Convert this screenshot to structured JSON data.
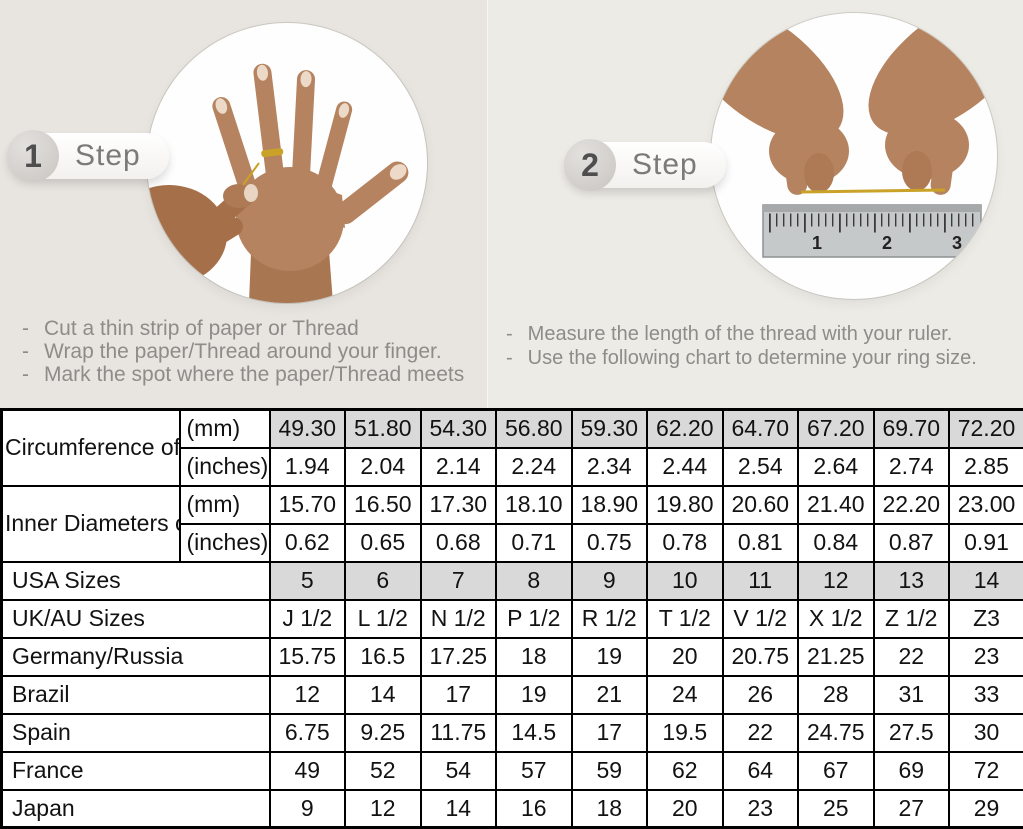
{
  "steps": [
    {
      "number": "1",
      "label": "Step",
      "instructions": [
        "Cut a thin strip of paper or Thread",
        "Wrap the paper/Thread around your finger.",
        "Mark the spot where the paper/Thread meets"
      ]
    },
    {
      "number": "2",
      "label": "Step",
      "instructions": [
        "Measure the length of the thread with your ruler.",
        "Use the following chart to determine your ring size."
      ],
      "ruler_numbers": [
        "1",
        "2",
        "3"
      ]
    }
  ],
  "colors": {
    "background_left": "#e8e5e0",
    "background_right": "#edebe6",
    "table_shaded": "#d9d9d9",
    "table_border": "#000000",
    "gold_thread": "#c9a227"
  },
  "table": {
    "groups": [
      {
        "label": "Circumference of Your Finger",
        "rows": [
          {
            "unit": "(mm)",
            "shaded": true,
            "values": [
              "49.30",
              "51.80",
              "54.30",
              "56.80",
              "59.30",
              "62.20",
              "64.70",
              "67.20",
              "69.70",
              "72.20"
            ]
          },
          {
            "unit": "(inches)",
            "shaded": false,
            "values": [
              "1.94",
              "2.04",
              "2.14",
              "2.24",
              "2.34",
              "2.44",
              "2.54",
              "2.64",
              "2.74",
              "2.85"
            ]
          }
        ]
      },
      {
        "label": "Inner Diameters of Rings",
        "rows": [
          {
            "unit": "(mm)",
            "shaded": false,
            "values": [
              "15.70",
              "16.50",
              "17.30",
              "18.10",
              "18.90",
              "19.80",
              "20.60",
              "21.40",
              "22.20",
              "23.00"
            ]
          },
          {
            "unit": "(inches)",
            "shaded": false,
            "values": [
              "0.62",
              "0.65",
              "0.68",
              "0.71",
              "0.75",
              "0.78",
              "0.81",
              "0.84",
              "0.87",
              "0.91"
            ]
          }
        ]
      },
      {
        "label": "USA Sizes",
        "rows": [
          {
            "unit": null,
            "shaded": true,
            "values": [
              "5",
              "6",
              "7",
              "8",
              "9",
              "10",
              "11",
              "12",
              "13",
              "14"
            ]
          }
        ]
      },
      {
        "label": "UK/AU Sizes",
        "rows": [
          {
            "unit": null,
            "shaded": false,
            "values": [
              "J 1/2",
              "L 1/2",
              "N 1/2",
              "P 1/2",
              "R 1/2",
              "T 1/2",
              "V 1/2",
              "X 1/2",
              "Z 1/2",
              "Z3"
            ]
          }
        ]
      },
      {
        "label": "Germany/Russia",
        "rows": [
          {
            "unit": null,
            "shaded": false,
            "values": [
              "15.75",
              "16.5",
              "17.25",
              "18",
              "19",
              "20",
              "20.75",
              "21.25",
              "22",
              "23"
            ]
          }
        ]
      },
      {
        "label": "Brazil",
        "rows": [
          {
            "unit": null,
            "shaded": false,
            "values": [
              "12",
              "14",
              "17",
              "19",
              "21",
              "24",
              "26",
              "28",
              "31",
              "33"
            ]
          }
        ]
      },
      {
        "label": "Spain",
        "rows": [
          {
            "unit": null,
            "shaded": false,
            "values": [
              "6.75",
              "9.25",
              "11.75",
              "14.5",
              "17",
              "19.5",
              "22",
              "24.75",
              "27.5",
              "30"
            ]
          }
        ]
      },
      {
        "label": "France",
        "rows": [
          {
            "unit": null,
            "shaded": false,
            "values": [
              "49",
              "52",
              "54",
              "57",
              "59",
              "62",
              "64",
              "67",
              "69",
              "72"
            ]
          }
        ]
      },
      {
        "label": "Japan",
        "rows": [
          {
            "unit": null,
            "shaded": false,
            "values": [
              "9",
              "12",
              "14",
              "16",
              "18",
              "20",
              "23",
              "25",
              "27",
              "29"
            ]
          }
        ]
      }
    ]
  }
}
